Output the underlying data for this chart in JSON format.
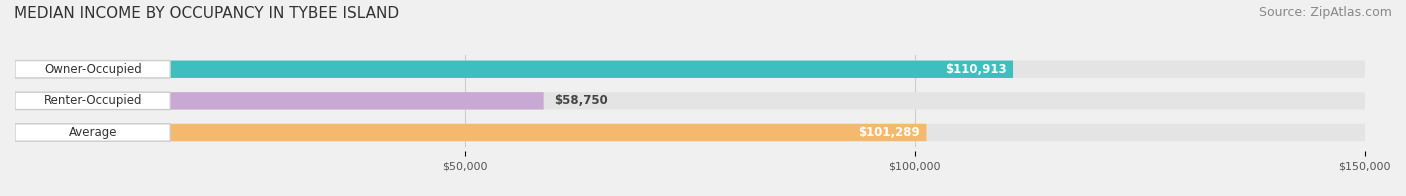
{
  "title": "MEDIAN INCOME BY OCCUPANCY IN TYBEE ISLAND",
  "source": "Source: ZipAtlas.com",
  "categories": [
    "Owner-Occupied",
    "Renter-Occupied",
    "Average"
  ],
  "values": [
    110913,
    58750,
    101289
  ],
  "bar_colors": [
    "#3dbfbf",
    "#c9a8d4",
    "#f5b96e"
  ],
  "value_labels": [
    "$110,913",
    "$58,750",
    "$101,289"
  ],
  "xlim": [
    0,
    150000
  ],
  "xticks": [
    0,
    50000,
    100000,
    150000
  ],
  "xtick_labels": [
    "$50,000",
    "$100,000",
    "$150,000"
  ],
  "background_color": "#f0f0f0",
  "bar_background_color": "#e4e4e4",
  "title_fontsize": 11,
  "source_fontsize": 9,
  "bar_height": 0.55,
  "figsize": [
    14.06,
    1.96
  ],
  "dpi": 100
}
